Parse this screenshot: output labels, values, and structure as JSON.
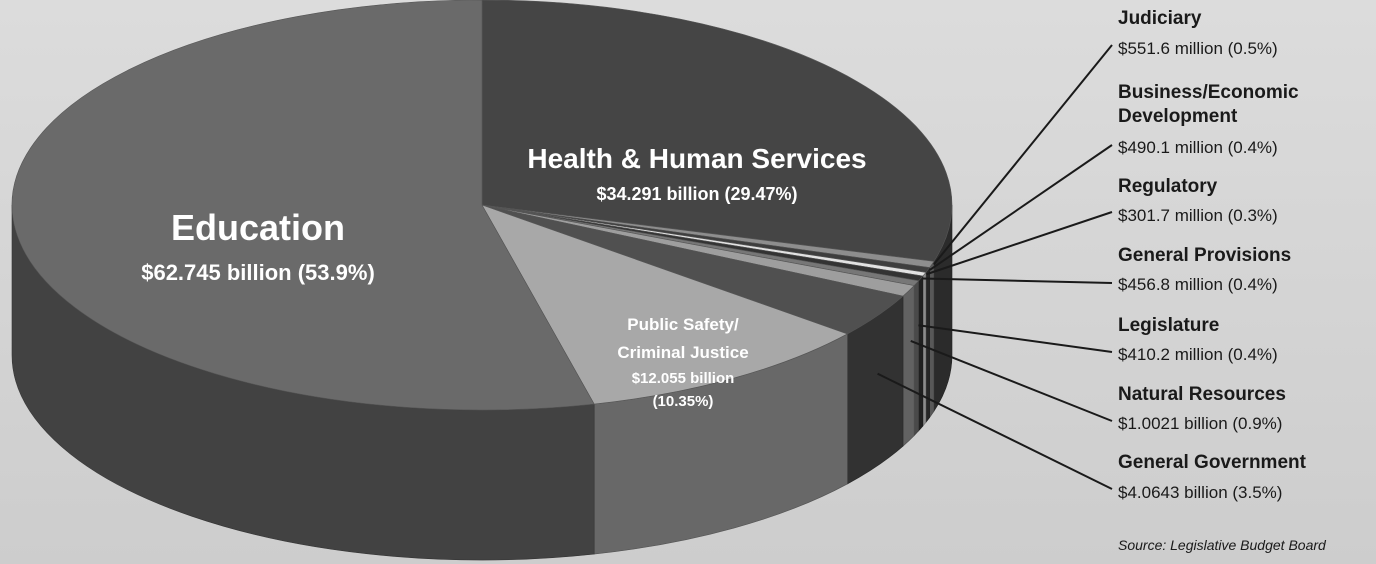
{
  "chart_data": {
    "type": "pie",
    "slices": [
      {
        "name": "Health & Human Services",
        "value_text": "$34.291 billion (29.47%)",
        "percent": 29.47,
        "color": "#454545"
      },
      {
        "name": "Judiciary",
        "value_text": "$551.6 million (0.5%)",
        "percent": 0.5,
        "color": "#8e8e8e"
      },
      {
        "name": "Business/Economic Development",
        "value_text": "$490.1 million (0.4%)",
        "percent": 0.4,
        "color": "#3e3e3e"
      },
      {
        "name": "Regulatory",
        "value_text": "$301.7 million (0.3%)",
        "percent": 0.3,
        "color": "#e2e2e2"
      },
      {
        "name": "General Provisions",
        "value_text": "$456.8 million (0.4%)",
        "percent": 0.4,
        "color": "#333333"
      },
      {
        "name": "Legislature",
        "value_text": "$410.2 million (0.4%)",
        "percent": 0.4,
        "color": "#777777"
      },
      {
        "name": "Natural Resources",
        "value_text": "$1.0021 billion (0.9%)",
        "percent": 0.9,
        "color": "#9e9e9e"
      },
      {
        "name": "General Government",
        "value_text": "$4.0643 billion (3.5%)",
        "percent": 3.5,
        "color": "#505050"
      },
      {
        "name": "Public Safety/ Criminal Justice",
        "value_text": "$12.055 billion (10.35%)",
        "percent": 10.35,
        "color": "#a8a8a8"
      },
      {
        "name": "Education",
        "value_text": "$62.745 billion (53.9%)",
        "percent": 53.9,
        "color": "#6a6a6a"
      }
    ],
    "labels": {
      "education": {
        "title": "Education",
        "value": "$62.745 billion (53.9%)"
      },
      "health": {
        "title": "Health & Human Services",
        "value": "$34.291 billion (29.47%)"
      },
      "public_safety": {
        "title_line1": "Public Safety/",
        "title_line2": "Criminal Justice",
        "value_line1": "$12.055 billion",
        "value_line2": "(10.35%)"
      }
    },
    "callouts": [
      {
        "title_lines": [
          "Judiciary"
        ],
        "value": "$551.6 million (0.5%)"
      },
      {
        "title_lines": [
          "Business/Economic",
          "Development"
        ],
        "value": "$490.1 million (0.4%)"
      },
      {
        "title_lines": [
          "Regulatory"
        ],
        "value": "$301.7 million (0.3%)"
      },
      {
        "title_lines": [
          "General Provisions"
        ],
        "value": "$456.8 million (0.4%)"
      },
      {
        "title_lines": [
          "Legislature"
        ],
        "value": "$410.2 million (0.4%)"
      },
      {
        "title_lines": [
          "Natural Resources"
        ],
        "value": "$1.0021 billion (0.9%)"
      },
      {
        "title_lines": [
          "General Government"
        ],
        "value": "$4.0643 billion (3.5%)"
      }
    ],
    "source": "Source: Legislative Budget Board"
  }
}
